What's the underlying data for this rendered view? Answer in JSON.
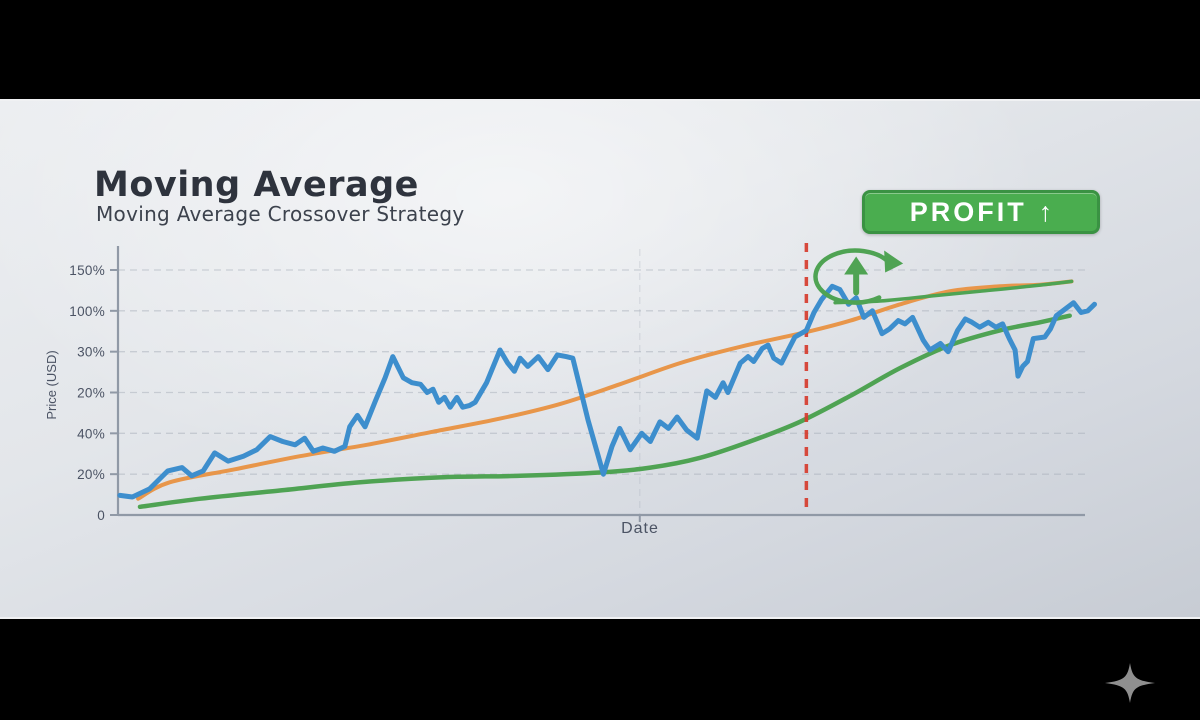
{
  "slide": {
    "title": "Moving Average",
    "subtitle": "Moving Average Crossover Strategy",
    "profit_badge": {
      "label": "PROFIT",
      "arrow": "↑"
    }
  },
  "colors": {
    "letterbox": "#000000",
    "background_top": "#eceef1",
    "background_bottom": "#c7ccd4",
    "title_text": "#2e333d",
    "subtitle_text": "#3c424d",
    "axis_text": "#4b5364",
    "axis_line": "#9099a6",
    "grid_line": "#a9b0bb",
    "badge_bg": "#4aad4f",
    "badge_border": "#3a9243",
    "badge_text": "#ffffff",
    "price_line": "#3d8ecd",
    "ma_fast_line": "#e8964a",
    "ma_slow_line": "#4fa353",
    "signal_line": "#d63c2e",
    "logo": "#8f8f8f"
  },
  "chart_data": {
    "type": "line",
    "title": "Moving Average Crossover Strategy",
    "xlabel": "Date",
    "ylabel": "Price (USD)",
    "x_range": [
      0,
      102.5
    ],
    "y_range": [
      0,
      160
    ],
    "grid": true,
    "legend": "none",
    "y_ticks": [
      {
        "label": "150%",
        "value": 150
      },
      {
        "label": "100%",
        "value": 125
      },
      {
        "label": "30%",
        "value": 100
      },
      {
        "label": "20%",
        "value": 75
      },
      {
        "label": "40%",
        "value": 50
      },
      {
        "label": "20%",
        "value": 25
      },
      {
        "label": "0",
        "value": 0
      }
    ],
    "x_tick_value": 54.5,
    "series": [
      {
        "name": "price",
        "color_key": "price_line",
        "smooth": false,
        "width": 5,
        "points": [
          [
            0.2,
            12
          ],
          [
            1.5,
            11
          ],
          [
            3.3,
            16
          ],
          [
            5.2,
            27
          ],
          [
            6.7,
            29
          ],
          [
            7.7,
            24
          ],
          [
            8.9,
            27
          ],
          [
            10.1,
            38
          ],
          [
            11.5,
            33
          ],
          [
            13.1,
            36
          ],
          [
            14.5,
            40
          ],
          [
            15.9,
            48
          ],
          [
            17.2,
            45
          ],
          [
            18.5,
            43
          ],
          [
            19.5,
            47
          ],
          [
            20.4,
            39
          ],
          [
            21.4,
            41
          ],
          [
            22.6,
            39
          ],
          [
            23.7,
            42
          ],
          [
            24.2,
            54
          ],
          [
            25,
            61
          ],
          [
            25.8,
            54
          ],
          [
            26.9,
            70
          ],
          [
            27.9,
            84
          ],
          [
            28.7,
            97
          ],
          [
            29.8,
            84
          ],
          [
            30.7,
            81
          ],
          [
            31.6,
            80
          ],
          [
            32.3,
            75
          ],
          [
            32.9,
            77
          ],
          [
            33.5,
            69
          ],
          [
            34.1,
            72
          ],
          [
            34.7,
            66
          ],
          [
            35.4,
            72
          ],
          [
            36,
            66
          ],
          [
            36.7,
            67
          ],
          [
            37.3,
            69
          ],
          [
            38.5,
            81
          ],
          [
            39.9,
            101
          ],
          [
            40.7,
            93
          ],
          [
            41.4,
            88
          ],
          [
            42,
            96
          ],
          [
            42.8,
            91
          ],
          [
            43.9,
            97
          ],
          [
            44.9,
            89
          ],
          [
            45.9,
            98
          ],
          [
            46.8,
            97
          ],
          [
            47.5,
            96
          ],
          [
            49.1,
            58
          ],
          [
            50.7,
            25
          ],
          [
            51.6,
            42
          ],
          [
            52.4,
            53
          ],
          [
            53.5,
            40
          ],
          [
            54.7,
            50
          ],
          [
            55.6,
            45
          ],
          [
            56.6,
            57
          ],
          [
            57.5,
            53
          ],
          [
            58.4,
            60
          ],
          [
            59.4,
            52
          ],
          [
            60.5,
            47
          ],
          [
            61.5,
            76
          ],
          [
            62.4,
            72
          ],
          [
            63.2,
            81
          ],
          [
            63.7,
            75
          ],
          [
            65,
            93
          ],
          [
            65.8,
            97
          ],
          [
            66.4,
            94
          ],
          [
            67.3,
            102
          ],
          [
            67.9,
            104
          ],
          [
            68.5,
            96
          ],
          [
            69.3,
            93
          ],
          [
            70,
            101
          ],
          [
            70.7,
            109
          ],
          [
            71.9,
            113
          ],
          [
            72.7,
            124
          ],
          [
            73.5,
            132
          ],
          [
            74.6,
            140
          ],
          [
            75.4,
            138
          ],
          [
            76.3,
            129
          ],
          [
            77.1,
            133
          ],
          [
            77.9,
            121
          ],
          [
            78.8,
            125
          ],
          [
            79.8,
            111
          ],
          [
            80.6,
            114
          ],
          [
            81.5,
            119
          ],
          [
            82.2,
            117
          ],
          [
            83,
            121
          ],
          [
            84.1,
            107
          ],
          [
            84.8,
            101
          ],
          [
            85.9,
            105
          ],
          [
            86.7,
            100
          ],
          [
            87.7,
            113
          ],
          [
            88.5,
            120
          ],
          [
            89.2,
            118
          ],
          [
            90,
            115
          ],
          [
            90.9,
            118
          ],
          [
            91.7,
            115
          ],
          [
            92.4,
            117
          ],
          [
            93.1,
            108
          ],
          [
            93.7,
            101
          ],
          [
            94,
            85
          ],
          [
            94.5,
            91
          ],
          [
            95,
            94
          ],
          [
            95.6,
            108
          ],
          [
            96.8,
            109
          ],
          [
            97.4,
            114
          ],
          [
            98,
            122
          ],
          [
            98.9,
            126
          ],
          [
            99.8,
            130
          ],
          [
            100.6,
            124
          ],
          [
            101.3,
            125
          ],
          [
            102,
            129
          ]
        ]
      },
      {
        "name": "moving-average-fast",
        "color_key": "ma_fast_line",
        "smooth": true,
        "width": 4,
        "points": [
          [
            2.1,
            10
          ],
          [
            5.4,
            20
          ],
          [
            12.2,
            28
          ],
          [
            19,
            36
          ],
          [
            26,
            43
          ],
          [
            32.9,
            51
          ],
          [
            39.9,
            59
          ],
          [
            46.2,
            68
          ],
          [
            52.4,
            80
          ],
          [
            58.7,
            93
          ],
          [
            65,
            103
          ],
          [
            71.9,
            112
          ],
          [
            76.5,
            119
          ],
          [
            81.7,
            129
          ],
          [
            86.9,
            137
          ],
          [
            92.1,
            140
          ],
          [
            96.3,
            141
          ],
          [
            99.6,
            143
          ]
        ]
      },
      {
        "name": "moving-average-slow",
        "color_key": "ma_slow_line",
        "smooth": true,
        "width": 4.5,
        "points": [
          [
            2.3,
            5
          ],
          [
            8.6,
            10
          ],
          [
            16.9,
            15
          ],
          [
            25.3,
            20
          ],
          [
            33.6,
            23
          ],
          [
            42,
            24
          ],
          [
            50.3,
            26
          ],
          [
            55.6,
            29
          ],
          [
            60.8,
            35
          ],
          [
            66,
            45
          ],
          [
            71.2,
            57
          ],
          [
            76.5,
            73
          ],
          [
            81.7,
            90
          ],
          [
            86.9,
            104
          ],
          [
            92.1,
            113
          ],
          [
            96.3,
            118
          ],
          [
            99.4,
            122
          ]
        ]
      },
      {
        "name": "moving-average-slow-upper",
        "color_key": "ma_slow_line",
        "smooth": true,
        "width": 3.5,
        "points": [
          [
            74.9,
            130
          ],
          [
            79.6,
            131
          ],
          [
            84.8,
            134
          ],
          [
            90,
            137
          ],
          [
            95.2,
            140
          ],
          [
            99.6,
            143
          ]
        ]
      }
    ],
    "signal_line": {
      "x": 71.9,
      "style": "dashed",
      "color_key": "signal_line"
    },
    "annotation": {
      "type": "cycle-up-arrow",
      "x": 77.1,
      "y": 146
    }
  },
  "footer": {
    "logo": "four-point-star"
  }
}
